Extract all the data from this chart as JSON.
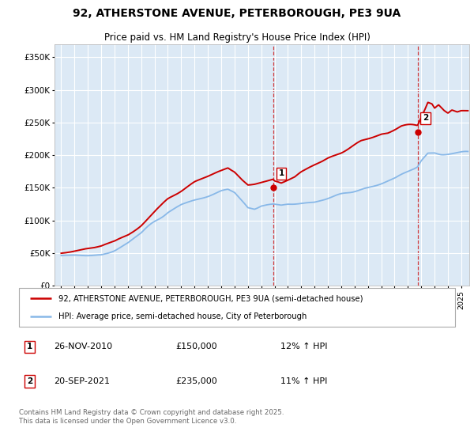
{
  "title": "92, ATHERSTONE AVENUE, PETERBOROUGH, PE3 9UA",
  "subtitle": "Price paid vs. HM Land Registry's House Price Index (HPI)",
  "ylabel_ticks": [
    "£0",
    "£50K",
    "£100K",
    "£150K",
    "£200K",
    "£250K",
    "£300K",
    "£350K"
  ],
  "ytick_values": [
    0,
    50000,
    100000,
    150000,
    200000,
    250000,
    300000,
    350000
  ],
  "ylim": [
    0,
    370000
  ],
  "xlim_start": 1994.5,
  "xlim_end": 2025.6,
  "sale1_date": 2010.9,
  "sale1_price": 150000,
  "sale2_date": 2021.72,
  "sale2_price": 235000,
  "legend_line1": "92, ATHERSTONE AVENUE, PETERBOROUGH, PE3 9UA (semi-detached house)",
  "legend_line2": "HPI: Average price, semi-detached house, City of Peterborough",
  "sale1_info_date": "26-NOV-2010",
  "sale1_info_price": "£150,000",
  "sale1_info_hpi": "12% ↑ HPI",
  "sale2_info_date": "20-SEP-2021",
  "sale2_info_price": "£235,000",
  "sale2_info_hpi": "11% ↑ HPI",
  "footer": "Contains HM Land Registry data © Crown copyright and database right 2025.\nThis data is licensed under the Open Government Licence v3.0.",
  "red_color": "#cc0000",
  "blue_color": "#88b8e8",
  "bg_color": "#dce9f5",
  "grid_color": "#ffffff",
  "vline_color": "#cc0000"
}
